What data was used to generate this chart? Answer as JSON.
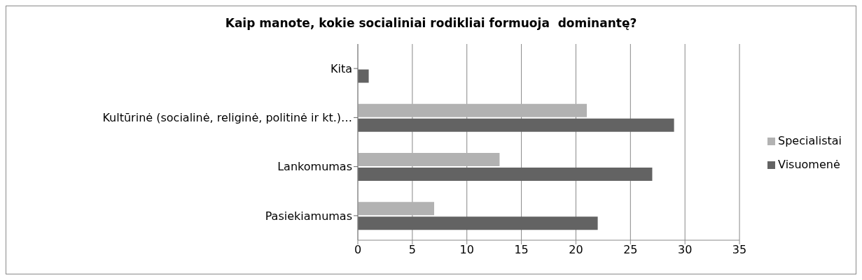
{
  "chart_data": {
    "type": "bar",
    "orientation": "horizontal",
    "title": "Kaip manote, kokie socialiniai rodikliai formuoja  dominantę?",
    "categories": [
      "Kita",
      "Kultūrinė (socialinė, religinė, politinė ir kt.)…",
      "Lankomumas",
      "Pasiekiamumas"
    ],
    "series": [
      {
        "name": "Specialistai",
        "color": "#b2b2b2",
        "values": [
          0,
          21,
          13,
          7
        ]
      },
      {
        "name": "Visuomenė",
        "color": "#636363",
        "values": [
          1,
          29,
          27,
          22
        ]
      }
    ],
    "xlim": [
      0,
      35
    ],
    "xticks": [
      0,
      5,
      10,
      15,
      20,
      25,
      30,
      35
    ],
    "grid": "x",
    "legend": "right"
  }
}
